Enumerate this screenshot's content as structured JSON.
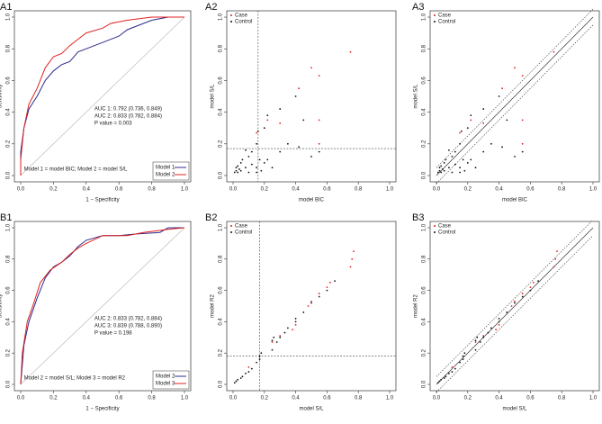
{
  "chart_data": [
    {
      "type": "line",
      "panel_label": "A1",
      "xlabel": "1 − Specificity",
      "ylabel": "Sensitivity",
      "xlim": [
        0,
        1
      ],
      "ylim": [
        0,
        1
      ],
      "xticks": [
        {
          "value": 0,
          "label": "0.0"
        },
        {
          "value": 0.2,
          "label": "0.2"
        },
        {
          "value": 0.4,
          "label": "0.4"
        },
        {
          "value": 0.6,
          "label": "0.6"
        },
        {
          "value": 0.8,
          "label": "0.8"
        },
        {
          "value": 1,
          "label": "1.0"
        }
      ],
      "yticks": [
        {
          "value": 0,
          "label": "0.0"
        },
        {
          "value": 0.2,
          "label": "0.2"
        },
        {
          "value": 0.4,
          "label": "0.4"
        },
        {
          "value": 0.6,
          "label": "0.6"
        },
        {
          "value": 0.8,
          "label": "0.8"
        },
        {
          "value": 1,
          "label": "1.0"
        }
      ],
      "annotations": [
        "AUC 1: 0.792 (0.736, 0.849)",
        "AUC 2: 0.833 (0.782, 0.884)",
        "P value = 0.003"
      ],
      "note": "Model 1 = model BIC; Model 2 = model S/L",
      "legend": "bottom-right",
      "series": [
        {
          "name": "Model 1",
          "color": "#2b2b8c",
          "x": [
            0,
            0,
            0.02,
            0.05,
            0.1,
            0.15,
            0.2,
            0.25,
            0.3,
            0.35,
            0.4,
            0.5,
            0.6,
            0.65,
            0.75,
            0.8,
            0.9,
            1
          ],
          "values": [
            0,
            0.15,
            0.3,
            0.42,
            0.5,
            0.6,
            0.66,
            0.7,
            0.72,
            0.78,
            0.8,
            0.84,
            0.88,
            0.92,
            0.96,
            0.98,
            1,
            1
          ]
        },
        {
          "name": "Model 2",
          "color": "#e02020",
          "x": [
            0,
            0,
            0.02,
            0.05,
            0.1,
            0.15,
            0.2,
            0.25,
            0.3,
            0.35,
            0.4,
            0.5,
            0.55,
            0.65,
            0.8,
            1
          ],
          "values": [
            0,
            0.1,
            0.3,
            0.45,
            0.55,
            0.68,
            0.75,
            0.77,
            0.82,
            0.86,
            0.9,
            0.93,
            0.96,
            0.98,
            1,
            1
          ]
        }
      ]
    },
    {
      "type": "scatter",
      "panel_label": "A2",
      "xlabel": "model BIC",
      "ylabel": "model S/L",
      "xlim": [
        0,
        1
      ],
      "ylim": [
        0,
        1
      ],
      "xticks": [
        {
          "value": 0,
          "label": "0.0"
        },
        {
          "value": 0.2,
          "label": "0.2"
        },
        {
          "value": 0.4,
          "label": "0.4"
        },
        {
          "value": 0.6,
          "label": "0.6"
        },
        {
          "value": 0.8,
          "label": "0.8"
        },
        {
          "value": 1,
          "label": "1.0"
        }
      ],
      "yticks": [
        {
          "value": 0,
          "label": "0.0"
        },
        {
          "value": 0.2,
          "label": "0.2"
        },
        {
          "value": 0.4,
          "label": "0.4"
        },
        {
          "value": 0.6,
          "label": "0.6"
        },
        {
          "value": 0.8,
          "label": "0.8"
        },
        {
          "value": 1,
          "label": "1.0"
        }
      ],
      "vline": 0.16,
      "hline": 0.17,
      "legend": "top-left",
      "series": [
        {
          "name": "Case",
          "color": "#e02020",
          "x": [
            0.75,
            0.55,
            0.55,
            0.55,
            0.5,
            0.42,
            0.15,
            0.22,
            0.3
          ],
          "values": [
            0.78,
            0.63,
            0.35,
            0.2,
            0.68,
            0.55,
            0.27,
            0.35,
            0.33
          ]
        },
        {
          "name": "Control",
          "color": "#111111",
          "x": [
            0.01,
            0.02,
            0.02,
            0.03,
            0.03,
            0.04,
            0.05,
            0.05,
            0.06,
            0.08,
            0.1,
            0.1,
            0.12,
            0.15,
            0.15,
            0.16,
            0.17,
            0.18,
            0.2,
            0.2,
            0.22,
            0.22,
            0.25,
            0.3,
            0.3,
            0.35,
            0.4,
            0.42,
            0.45,
            0.5,
            0.55,
            0.15,
            0.08,
            0.12
          ],
          "values": [
            0.02,
            0.03,
            0.05,
            0.02,
            0.06,
            0.04,
            0.08,
            0.03,
            0.1,
            0.05,
            0.12,
            0.02,
            0.15,
            0.2,
            0.05,
            0.28,
            0.1,
            0.03,
            0.3,
            0.08,
            0.38,
            0.1,
            0.05,
            0.42,
            0.15,
            0.2,
            0.5,
            0.18,
            0.35,
            0.12,
            0.15,
            0.02,
            0.16,
            0.07
          ]
        }
      ]
    },
    {
      "type": "scatter",
      "panel_label": "A3",
      "xlabel": "model BIC",
      "ylabel": "model S/L",
      "xlim": [
        0,
        1
      ],
      "ylim": [
        0,
        1
      ],
      "xticks": [
        {
          "value": 0,
          "label": "0.0"
        },
        {
          "value": 0.2,
          "label": "0.2"
        },
        {
          "value": 0.4,
          "label": "0.4"
        },
        {
          "value": 0.6,
          "label": "0.6"
        },
        {
          "value": 0.8,
          "label": "0.8"
        },
        {
          "value": 1,
          "label": "1.0"
        }
      ],
      "yticks": [
        {
          "value": 0,
          "label": "0.0"
        },
        {
          "value": 0.2,
          "label": "0.2"
        },
        {
          "value": 0.4,
          "label": "0.4"
        },
        {
          "value": 0.6,
          "label": "0.6"
        },
        {
          "value": 0.8,
          "label": "0.8"
        },
        {
          "value": 1,
          "label": "1.0"
        }
      ],
      "diagonal_offset": 0.05,
      "legend": "top-left",
      "series": [
        {
          "name": "Case",
          "color": "#e02020",
          "x": [
            0.75,
            0.55,
            0.55,
            0.55,
            0.5,
            0.42,
            0.15,
            0.22,
            0.3
          ],
          "values": [
            0.78,
            0.63,
            0.35,
            0.2,
            0.68,
            0.55,
            0.27,
            0.35,
            0.33
          ]
        },
        {
          "name": "Control",
          "color": "#111111",
          "x": [
            0.01,
            0.02,
            0.02,
            0.03,
            0.03,
            0.04,
            0.05,
            0.05,
            0.06,
            0.08,
            0.1,
            0.1,
            0.12,
            0.15,
            0.15,
            0.16,
            0.17,
            0.18,
            0.2,
            0.2,
            0.22,
            0.22,
            0.25,
            0.3,
            0.3,
            0.35,
            0.4,
            0.42,
            0.45,
            0.5,
            0.55,
            0.15,
            0.08,
            0.12
          ],
          "values": [
            0.02,
            0.03,
            0.05,
            0.02,
            0.06,
            0.04,
            0.08,
            0.03,
            0.1,
            0.05,
            0.12,
            0.02,
            0.15,
            0.2,
            0.05,
            0.28,
            0.1,
            0.03,
            0.3,
            0.08,
            0.38,
            0.1,
            0.05,
            0.42,
            0.15,
            0.2,
            0.5,
            0.18,
            0.35,
            0.12,
            0.15,
            0.02,
            0.16,
            0.07
          ]
        }
      ]
    },
    {
      "type": "line",
      "panel_label": "B1",
      "xlabel": "1 − Specificity",
      "ylabel": "Sensitivity",
      "xlim": [
        0,
        1
      ],
      "ylim": [
        0,
        1
      ],
      "xticks": [
        {
          "value": 0,
          "label": "0.0"
        },
        {
          "value": 0.2,
          "label": "0.2"
        },
        {
          "value": 0.4,
          "label": "0.4"
        },
        {
          "value": 0.6,
          "label": "0.6"
        },
        {
          "value": 0.8,
          "label": "0.8"
        },
        {
          "value": 1,
          "label": "1.0"
        }
      ],
      "yticks": [
        {
          "value": 0,
          "label": "0.0"
        },
        {
          "value": 0.2,
          "label": "0.2"
        },
        {
          "value": 0.4,
          "label": "0.4"
        },
        {
          "value": 0.6,
          "label": "0.6"
        },
        {
          "value": 0.8,
          "label": "0.8"
        },
        {
          "value": 1,
          "label": "1.0"
        }
      ],
      "annotations": [
        "AUC 2: 0.833 (0.782, 0.884)",
        "AUC 3: 0.839 (0.788, 0.890)",
        "P value = 0.198"
      ],
      "note": "Model 2 = model S/L; Model 3 = model R2",
      "legend": "bottom-right",
      "series": [
        {
          "name": "Model 2",
          "color": "#2b2b8c",
          "x": [
            0,
            0.02,
            0.05,
            0.1,
            0.15,
            0.2,
            0.25,
            0.3,
            0.35,
            0.4,
            0.5,
            0.6,
            0.7,
            0.85,
            0.9,
            1
          ],
          "values": [
            0,
            0.25,
            0.4,
            0.55,
            0.68,
            0.75,
            0.78,
            0.82,
            0.88,
            0.92,
            0.95,
            0.95,
            0.96,
            0.97,
            1,
            1
          ]
        },
        {
          "name": "Model 3",
          "color": "#e02020",
          "x": [
            0,
            0.01,
            0.04,
            0.08,
            0.12,
            0.18,
            0.25,
            0.3,
            0.35,
            0.4,
            0.5,
            0.65,
            0.75,
            0.9,
            1
          ],
          "values": [
            0,
            0.2,
            0.4,
            0.52,
            0.65,
            0.73,
            0.78,
            0.83,
            0.87,
            0.9,
            0.95,
            0.95,
            0.97,
            0.99,
            1
          ]
        }
      ]
    },
    {
      "type": "scatter",
      "panel_label": "B2",
      "xlabel": "model S/L",
      "ylabel": "model R2",
      "xlim": [
        0,
        1
      ],
      "ylim": [
        0,
        1
      ],
      "xticks": [
        {
          "value": 0,
          "label": "0.0"
        },
        {
          "value": 0.2,
          "label": "0.2"
        },
        {
          "value": 0.4,
          "label": "0.4"
        },
        {
          "value": 0.6,
          "label": "0.6"
        },
        {
          "value": 0.8,
          "label": "0.8"
        },
        {
          "value": 1,
          "label": "1.0"
        }
      ],
      "yticks": [
        {
          "value": 0,
          "label": "0.0"
        },
        {
          "value": 0.2,
          "label": "0.2"
        },
        {
          "value": 0.4,
          "label": "0.4"
        },
        {
          "value": 0.6,
          "label": "0.6"
        },
        {
          "value": 0.8,
          "label": "0.8"
        },
        {
          "value": 1,
          "label": "1.0"
        }
      ],
      "vline": 0.17,
      "hline": 0.18,
      "legend": "top-left",
      "series": [
        {
          "name": "Case",
          "color": "#e02020",
          "x": [
            0.02,
            0.1,
            0.17,
            0.25,
            0.3,
            0.38,
            0.4,
            0.48,
            0.5,
            0.55,
            0.6,
            0.62,
            0.75,
            0.76,
            0.77
          ],
          "values": [
            0.02,
            0.11,
            0.18,
            0.27,
            0.31,
            0.35,
            0.38,
            0.5,
            0.53,
            0.58,
            0.62,
            0.65,
            0.75,
            0.8,
            0.85
          ]
        },
        {
          "name": "Control",
          "color": "#111111",
          "x": [
            0.01,
            0.02,
            0.03,
            0.05,
            0.06,
            0.08,
            0.1,
            0.12,
            0.15,
            0.17,
            0.17,
            0.18,
            0.25,
            0.25,
            0.26,
            0.28,
            0.3,
            0.33,
            0.35,
            0.4,
            0.4,
            0.45,
            0.5,
            0.55,
            0.6,
            0.65
          ],
          "values": [
            0.01,
            0.02,
            0.03,
            0.04,
            0.05,
            0.07,
            0.08,
            0.1,
            0.14,
            0.16,
            0.18,
            0.2,
            0.22,
            0.28,
            0.3,
            0.27,
            0.3,
            0.33,
            0.36,
            0.4,
            0.42,
            0.46,
            0.52,
            0.56,
            0.6,
            0.66
          ]
        }
      ]
    },
    {
      "type": "scatter",
      "panel_label": "B3",
      "xlabel": "model S/L",
      "ylabel": "model R2",
      "xlim": [
        0,
        1
      ],
      "ylim": [
        0,
        1
      ],
      "xticks": [
        {
          "value": 0,
          "label": "0.0"
        },
        {
          "value": 0.2,
          "label": "0.2"
        },
        {
          "value": 0.4,
          "label": "0.4"
        },
        {
          "value": 0.6,
          "label": "0.6"
        },
        {
          "value": 0.8,
          "label": "0.8"
        },
        {
          "value": 1,
          "label": "1.0"
        }
      ],
      "yticks": [
        {
          "value": 0,
          "label": "0.0"
        },
        {
          "value": 0.2,
          "label": "0.2"
        },
        {
          "value": 0.4,
          "label": "0.4"
        },
        {
          "value": 0.6,
          "label": "0.6"
        },
        {
          "value": 0.8,
          "label": "0.8"
        },
        {
          "value": 1,
          "label": "1.0"
        }
      ],
      "diagonal_offset": 0.05,
      "legend": "top-left",
      "series": [
        {
          "name": "Case",
          "color": "#e02020",
          "x": [
            0.02,
            0.1,
            0.17,
            0.25,
            0.3,
            0.38,
            0.4,
            0.48,
            0.5,
            0.55,
            0.6,
            0.62,
            0.75,
            0.76,
            0.77
          ],
          "values": [
            0.02,
            0.11,
            0.18,
            0.27,
            0.31,
            0.35,
            0.38,
            0.5,
            0.53,
            0.58,
            0.62,
            0.65,
            0.75,
            0.8,
            0.85
          ]
        },
        {
          "name": "Control",
          "color": "#111111",
          "x": [
            0.01,
            0.02,
            0.03,
            0.05,
            0.06,
            0.08,
            0.1,
            0.12,
            0.15,
            0.17,
            0.17,
            0.18,
            0.25,
            0.25,
            0.26,
            0.28,
            0.3,
            0.33,
            0.35,
            0.4,
            0.4,
            0.45,
            0.5,
            0.55,
            0.6,
            0.65
          ],
          "values": [
            0.01,
            0.02,
            0.03,
            0.04,
            0.05,
            0.07,
            0.08,
            0.1,
            0.14,
            0.16,
            0.18,
            0.2,
            0.22,
            0.28,
            0.3,
            0.27,
            0.3,
            0.33,
            0.36,
            0.4,
            0.42,
            0.46,
            0.52,
            0.56,
            0.6,
            0.66
          ]
        }
      ]
    }
  ]
}
